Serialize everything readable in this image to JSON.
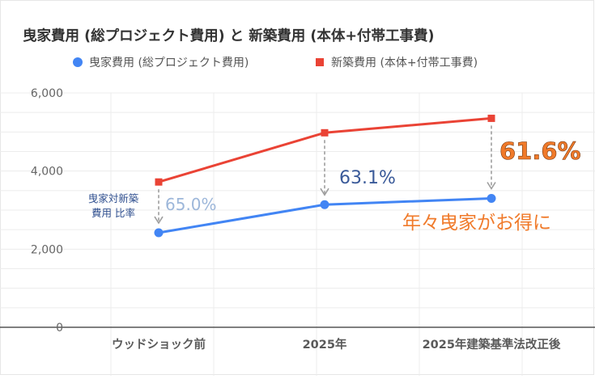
{
  "chart_data": {
    "type": "line",
    "title": "曳家費用 (総プロジェクト費用) と 新築費用 (本体+付帯工事費)",
    "categories": [
      "ウッドショック前",
      "2025年",
      "2025年建築基準法改正後"
    ],
    "series": [
      {
        "name": "曳家費用 (総プロジェクト費用)",
        "color": "#4285f4",
        "marker": "circle",
        "values": [
          2420,
          3140,
          3300
        ]
      },
      {
        "name": "新築費用 (本体+付帯工事費)",
        "color": "#ea4335",
        "marker": "square",
        "values": [
          3720,
          4980,
          5350
        ]
      }
    ],
    "ylim": [
      0,
      6000
    ],
    "yticks": [
      "0",
      "2,000",
      "4,000",
      "6,000"
    ],
    "grid": true,
    "legend_position": "top-left"
  },
  "annotations": {
    "ratio_label": "曳家対新築\n費用 比率",
    "ratios": [
      "65.0%",
      "63.1%",
      "61.6%"
    ],
    "ratio_colors": [
      "#9db7da",
      "#3a5a99",
      "#f07a2a"
    ],
    "highlight": "年々曳家がお得に",
    "highlight_color": "#f07a2a",
    "arrow_color": "#9e9e9e"
  }
}
